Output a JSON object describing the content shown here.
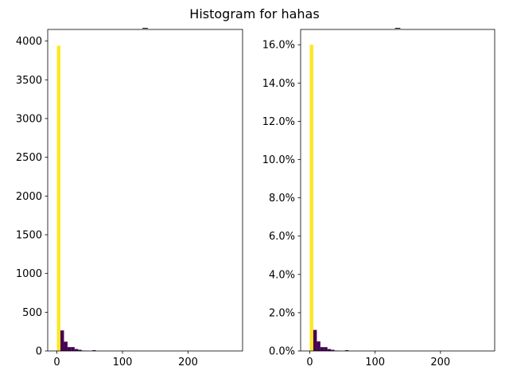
{
  "figure_title": "Histogram for hahas",
  "colors": {
    "highlight_bar": "#fde725",
    "bar": "#440154"
  },
  "chart_data": [
    {
      "type": "bar",
      "title": "_",
      "xlabel": "",
      "ylabel": "",
      "xlim": [
        -14,
        283
      ],
      "ylim": [
        0,
        4150
      ],
      "xticks": [
        0,
        100,
        200
      ],
      "xtick_labels": [
        "0",
        "100",
        "200"
      ],
      "yticks": [
        0,
        500,
        1000,
        1500,
        2000,
        2500,
        3000,
        3500,
        4000
      ],
      "ytick_labels": [
        "0",
        "500",
        "1000",
        "1500",
        "2000",
        "2500",
        "3000",
        "3500",
        "4000"
      ],
      "bin_width": 5.4,
      "bins": [
        {
          "x0": 0.0,
          "value": 3940,
          "highlight": true
        },
        {
          "x0": 5.4,
          "value": 265
        },
        {
          "x0": 10.8,
          "value": 120
        },
        {
          "x0": 16.2,
          "value": 50
        },
        {
          "x0": 21.6,
          "value": 50
        },
        {
          "x0": 27.0,
          "value": 25
        },
        {
          "x0": 32.4,
          "value": 15
        },
        {
          "x0": 37.8,
          "value": 5
        },
        {
          "x0": 43.2,
          "value": 3
        },
        {
          "x0": 54.0,
          "value": 10
        }
      ]
    },
    {
      "type": "bar",
      "title": "_",
      "xlabel": "",
      "ylabel": "",
      "xlim": [
        -14,
        283
      ],
      "ylim": [
        0,
        16.8
      ],
      "xticks": [
        0,
        100,
        200
      ],
      "xtick_labels": [
        "0",
        "100",
        "200"
      ],
      "yticks": [
        0,
        2,
        4,
        6,
        8,
        10,
        12,
        14,
        16
      ],
      "ytick_labels": [
        "0.0%",
        "2.0%",
        "4.0%",
        "6.0%",
        "8.0%",
        "10.0%",
        "12.0%",
        "14.0%",
        "16.0%"
      ],
      "bin_width": 5.4,
      "bins": [
        {
          "x0": 0.0,
          "value": 16.0,
          "highlight": true
        },
        {
          "x0": 5.4,
          "value": 1.1
        },
        {
          "x0": 10.8,
          "value": 0.5
        },
        {
          "x0": 16.2,
          "value": 0.2
        },
        {
          "x0": 21.6,
          "value": 0.2
        },
        {
          "x0": 27.0,
          "value": 0.1
        },
        {
          "x0": 32.4,
          "value": 0.06
        },
        {
          "x0": 37.8,
          "value": 0.02
        },
        {
          "x0": 43.2,
          "value": 0.01
        },
        {
          "x0": 54.0,
          "value": 0.04
        }
      ]
    }
  ]
}
